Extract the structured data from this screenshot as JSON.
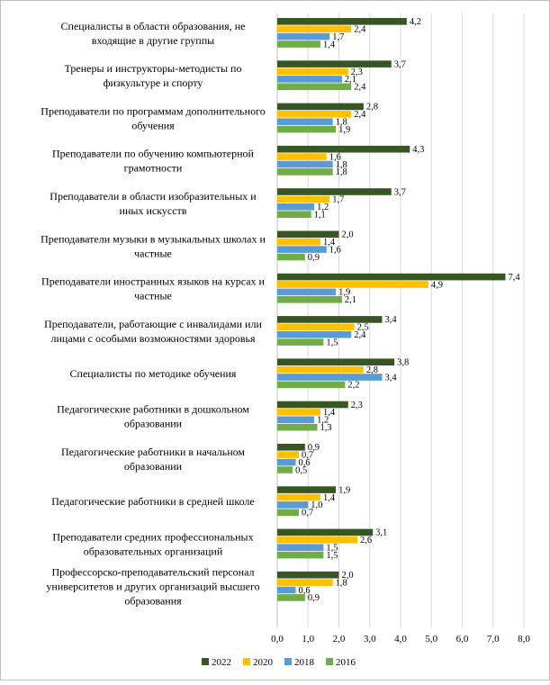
{
  "chart_data": {
    "type": "bar",
    "orientation": "horizontal",
    "categories": [
      [
        "Специалисты в области образования, не",
        "входящие в другие группы"
      ],
      [
        "Тренеры и инструкторы-методисты по",
        "физкультуре и спорту"
      ],
      [
        "Преподаватели по программам дополнительного",
        "обучения"
      ],
      [
        "Преподаватели по обучению компьютерной",
        "грамотности"
      ],
      [
        "Преподаватели в области изобразительных и",
        "иных искусств"
      ],
      [
        "Преподаватели музыки в музыкальных школах и",
        "частные"
      ],
      [
        "Преподаватели иностранных языков на курсах и",
        "частные"
      ],
      [
        "Преподаватели, работающие с инвалидами или",
        "лицами с особыми возможностями здоровья"
      ],
      [
        "Специалисты по методике обучения"
      ],
      [
        "Педагогические работники в дошкольном",
        "образовании"
      ],
      [
        "Педагогические работники в начальном",
        "образовании"
      ],
      [
        "Педагогические работники в средней школе"
      ],
      [
        "Преподаватели средних профессиональных",
        "образовательных организаций"
      ],
      [
        "Профессорско-преподавательский персонал",
        "университетов и других организаций высшего",
        "образования"
      ]
    ],
    "series": [
      {
        "name": "2022",
        "color": "#375623",
        "values": [
          4.2,
          3.7,
          2.8,
          4.3,
          3.7,
          2.0,
          7.4,
          3.4,
          3.8,
          2.3,
          0.9,
          1.9,
          3.1,
          2.0
        ],
        "labels": [
          "4,2",
          "3,7",
          "2,8",
          "4,3",
          "3,7",
          "2,0",
          "7,4",
          "3,4",
          "3,8",
          "2,3",
          "0,9",
          "1,9",
          "3,1",
          "2,0"
        ]
      },
      {
        "name": "2020",
        "color": "#ffc000",
        "values": [
          2.4,
          2.3,
          2.4,
          1.6,
          1.7,
          1.4,
          4.9,
          2.5,
          2.8,
          1.4,
          0.7,
          1.4,
          2.6,
          1.8
        ],
        "labels": [
          "2,4",
          "2,3",
          "2,4",
          "1,6",
          "1,7",
          "1,4",
          "4,9",
          "2,5",
          "2,8",
          "1,4",
          "0,7",
          "1,4",
          "2,6",
          "1,8"
        ]
      },
      {
        "name": "2018",
        "color": "#5b9bd5",
        "values": [
          1.7,
          2.1,
          1.8,
          1.8,
          1.2,
          1.6,
          1.9,
          2.4,
          3.4,
          1.2,
          0.6,
          1.0,
          1.5,
          0.6
        ],
        "labels": [
          "1,7",
          "2,1",
          "1,8",
          "1,8",
          "1,2",
          "1,6",
          "1,9",
          "2,4",
          "3,4",
          "1,2",
          "0,6",
          "1,0",
          "1,5",
          "0,6"
        ]
      },
      {
        "name": "2016",
        "color": "#70ad47",
        "values": [
          1.4,
          2.4,
          1.9,
          1.8,
          1.1,
          0.9,
          2.1,
          1.5,
          2.2,
          1.3,
          0.5,
          0.7,
          1.5,
          0.9
        ],
        "labels": [
          "1,4",
          "2,4",
          "1,9",
          "1,8",
          "1,1",
          "0,9",
          "2,1",
          "1,5",
          "2,2",
          "1,3",
          "0,5",
          "0,7",
          "1,5",
          "0,9"
        ]
      }
    ],
    "xlim": [
      0,
      8
    ],
    "xticks": [
      "0,0",
      "1,0",
      "2,0",
      "3,0",
      "4,0",
      "5,0",
      "6,0",
      "7,0",
      "8,0"
    ],
    "grid": true,
    "legend_position": "bottom"
  }
}
